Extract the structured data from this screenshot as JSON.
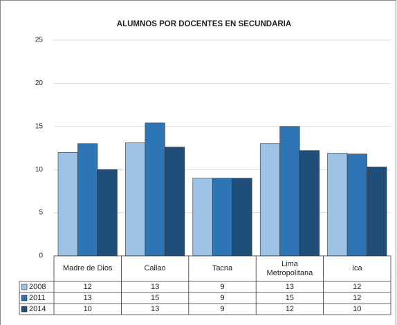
{
  "chart_data": {
    "type": "bar",
    "title": "ALUMNOS POR DOCENTES EN SECUNDARIA",
    "categories": [
      "Madre de Dios",
      "Callao",
      "Tacna",
      "Lima Metropolitana",
      "Ica"
    ],
    "series": [
      {
        "name": "2008",
        "color": "#9dc3e6",
        "values": [
          12,
          13.1,
          9,
          13,
          11.9
        ],
        "value_labels": [
          "12",
          "13",
          "9",
          "13",
          "12"
        ]
      },
      {
        "name": "2011",
        "color": "#2e75b6",
        "values": [
          13,
          15.4,
          9,
          15,
          11.8
        ],
        "value_labels": [
          "13",
          "15",
          "9",
          "15",
          "12"
        ]
      },
      {
        "name": "2014",
        "color": "#1f4e79",
        "values": [
          10,
          12.6,
          9,
          12.2,
          10.3
        ],
        "value_labels": [
          "10",
          "13",
          "9",
          "12",
          "10"
        ]
      }
    ],
    "ylim": [
      0,
      25
    ],
    "yticks": [
      0,
      5,
      10,
      15,
      20,
      25
    ],
    "grid": true,
    "legend": "table"
  }
}
